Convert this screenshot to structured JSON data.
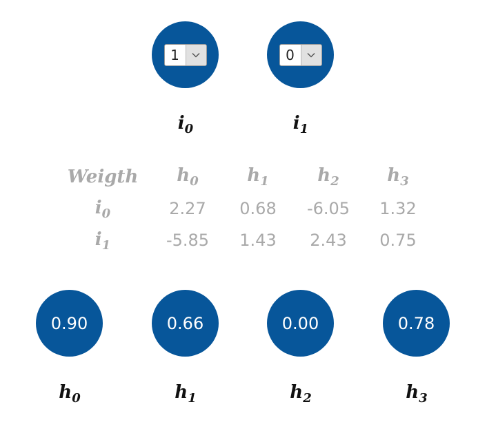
{
  "inputs": [
    {
      "label_base": "i",
      "label_sub": "0",
      "value": "1"
    },
    {
      "label_base": "i",
      "label_sub": "1",
      "value": "0"
    }
  ],
  "weights_table": {
    "corner": "Weigth",
    "columns": [
      {
        "base": "h",
        "sub": "0"
      },
      {
        "base": "h",
        "sub": "1"
      },
      {
        "base": "h",
        "sub": "2"
      },
      {
        "base": "h",
        "sub": "3"
      }
    ],
    "rows": [
      {
        "base": "i",
        "sub": "0",
        "values": [
          "2.27",
          "0.68",
          "-6.05",
          "1.32"
        ]
      },
      {
        "base": "i",
        "sub": "1",
        "values": [
          "-5.85",
          "1.43",
          "2.43",
          "0.75"
        ]
      }
    ]
  },
  "hidden": [
    {
      "label_base": "h",
      "label_sub": "0",
      "value": "0.90"
    },
    {
      "label_base": "h",
      "label_sub": "1",
      "value": "0.66"
    },
    {
      "label_base": "h",
      "label_sub": "2",
      "value": "0.00"
    },
    {
      "label_base": "h",
      "label_sub": "3",
      "value": "0.78"
    }
  ],
  "colors": {
    "node": "#07569a",
    "weights_text": "#a9a9a9",
    "label_text": "#111111"
  },
  "icons": {
    "select_arrow": "chevron-down-icon"
  }
}
